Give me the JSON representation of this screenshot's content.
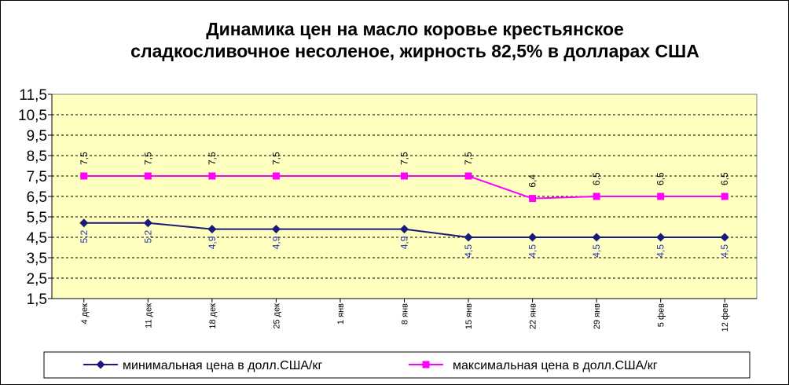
{
  "chart_data": {
    "type": "line",
    "title_lines": [
      "Динамика цен на масло коровье крестьянское",
      "сладкосливочное несоленое, жирность 82,5%  в долларах США"
    ],
    "categories": [
      "4 дек",
      "11 дек",
      "18 дек",
      "25 дек",
      "1 янв",
      "8 янв",
      "15 янв",
      "22 янв",
      "29 янв",
      "5 фев",
      "12 фев"
    ],
    "y_ticks": [
      "1,5",
      "2,5",
      "3,5",
      "4,5",
      "5,5",
      "6,5",
      "7,5",
      "8,5",
      "9,5",
      "10,5",
      "11,5"
    ],
    "ylim": [
      1.5,
      11.5
    ],
    "grid": true,
    "legend_position": "bottom",
    "series": [
      {
        "name": "минимальная  цена  в долл.США/кг",
        "color": "#1a1a7a",
        "marker": "diamond",
        "values": [
          5.2,
          5.2,
          4.9,
          4.9,
          null,
          4.9,
          4.5,
          4.5,
          4.5,
          4.5,
          4.5
        ],
        "labels": [
          "5,2",
          "5,2",
          "4,9",
          "4,9",
          "",
          "4,9",
          "4,5",
          "4,5",
          "4,5",
          "4,5",
          "4,5"
        ]
      },
      {
        "name": "максимальная  цена  в долл.США/кг",
        "color": "#ff00ff",
        "marker": "square",
        "values": [
          7.5,
          7.5,
          7.5,
          7.5,
          null,
          7.5,
          7.5,
          6.4,
          6.5,
          6.5,
          6.5
        ],
        "labels": [
          "7,5",
          "7,5",
          "7,5",
          "7,5",
          "",
          "7,5",
          "7,5",
          "6,4",
          "6,5",
          "6,5",
          "6,5"
        ]
      }
    ],
    "colors": {
      "plot_background": "#ffffc0",
      "plot_border": "#808080",
      "gridline": "#000000"
    }
  }
}
